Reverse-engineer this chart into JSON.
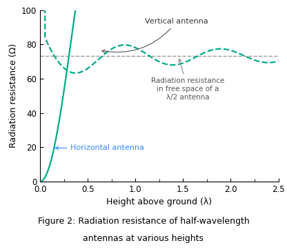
{
  "title": "Figure 2: Radiation resistance of half-wavelength\nantennas at various heights",
  "xlabel": "Height above ground (λ)",
  "ylabel": "Radiation resistance (Ω)",
  "xlim": [
    0,
    2.5
  ],
  "ylim": [
    0,
    100
  ],
  "xticks": [
    0,
    0.5,
    1.0,
    1.5,
    2.0,
    2.5
  ],
  "yticks": [
    0,
    20,
    40,
    60,
    80,
    100
  ],
  "free_space_rr": 73.1,
  "free_space_color": "#999999",
  "antenna_color": "#00AA88",
  "annotation_color_horizontal": "#3388FF",
  "annotation_color_vertical": "#333333",
  "annotation_color_freespace": "#555555",
  "label_vertical": "Vertical antenna",
  "label_horizontal": "Horizontal antenna",
  "label_freespace": "Radiation resistance\nin free space of a\nλ/2 antenna",
  "figsize": [
    4.16,
    3.65
  ],
  "dpi": 100
}
